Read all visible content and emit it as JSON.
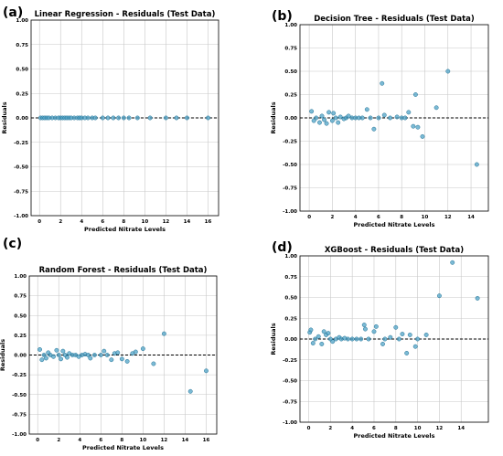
{
  "chart_data": [
    {
      "type": "scatter",
      "panel_label": "(a)",
      "title": "Linear Regression - Residuals (Test Data)",
      "xlabel": "Predicted Nitrate Levels",
      "ylabel": "Residuals",
      "xlim": [
        -0.8,
        17
      ],
      "ylim": [
        -1.0,
        1.0
      ],
      "xticks": [
        "0",
        "2",
        "4",
        "6",
        "8",
        "10",
        "12",
        "14",
        "16"
      ],
      "yticks": [
        "-1.00",
        "-0.75",
        "-0.50",
        "-0.25",
        "0.00",
        "0.25",
        "0.50",
        "0.75",
        "1.00"
      ],
      "xtick_values": [
        0,
        2,
        4,
        6,
        8,
        10,
        12,
        14,
        16
      ],
      "ytick_values": [
        -1.0,
        -0.75,
        -0.5,
        -0.25,
        0.0,
        0.25,
        0.5,
        0.75,
        1.0
      ],
      "reference_line": 0.0,
      "grid": true,
      "x": [
        0.1,
        0.3,
        0.5,
        0.7,
        0.9,
        1.2,
        1.5,
        1.8,
        2.0,
        2.2,
        2.4,
        2.6,
        2.8,
        3.0,
        3.3,
        3.6,
        3.8,
        4.0,
        4.3,
        4.6,
        5.0,
        5.3,
        6.0,
        6.5,
        7.0,
        7.5,
        8.0,
        8.5,
        9.3,
        10.5,
        12.0,
        13.0,
        14.0,
        16.0
      ],
      "y": [
        0,
        0,
        0,
        0,
        0,
        0,
        0,
        0,
        0,
        0,
        0,
        0,
        0,
        0,
        0,
        0,
        0,
        0,
        0,
        0,
        0,
        0,
        0,
        0,
        0,
        0,
        0,
        0,
        0,
        0,
        0,
        0,
        0,
        0
      ]
    },
    {
      "type": "scatter",
      "panel_label": "(b)",
      "title": "Decision Tree - Residuals (Test Data)",
      "xlabel": "Predicted Nitrate Levels",
      "ylabel": "Residuals",
      "xlim": [
        -0.8,
        15.5
      ],
      "ylim": [
        -1.0,
        1.0
      ],
      "xticks": [
        "0",
        "2",
        "4",
        "6",
        "8",
        "10",
        "12",
        "14"
      ],
      "yticks": [
        "-1.00",
        "-0.75",
        "-0.50",
        "-0.25",
        "0.00",
        "0.25",
        "0.50",
        "0.75",
        "1.00"
      ],
      "xtick_values": [
        0,
        2,
        4,
        6,
        8,
        10,
        12,
        14
      ],
      "ytick_values": [
        -1.0,
        -0.75,
        -0.5,
        -0.25,
        0.0,
        0.25,
        0.5,
        0.75,
        1.0
      ],
      "reference_line": 0.0,
      "grid": true,
      "x": [
        0.2,
        0.4,
        0.6,
        0.9,
        1.1,
        1.3,
        1.5,
        1.7,
        2.0,
        2.1,
        2.3,
        2.5,
        2.7,
        3.0,
        3.2,
        3.4,
        3.7,
        4.0,
        4.3,
        4.6,
        5.0,
        5.3,
        5.6,
        6.0,
        6.3,
        6.5,
        7.0,
        7.6,
        8.0,
        8.3,
        8.6,
        9.0,
        9.2,
        9.4,
        9.8,
        11.0,
        12.0,
        14.5
      ],
      "y": [
        0.07,
        -0.03,
        0.0,
        -0.05,
        0.02,
        -0.02,
        -0.06,
        0.06,
        -0.03,
        0.05,
        0.0,
        -0.05,
        0.01,
        -0.01,
        0.0,
        0.02,
        0.0,
        0.0,
        0.0,
        0.0,
        0.09,
        0.0,
        -0.12,
        0.0,
        0.37,
        0.03,
        0.0,
        0.01,
        0.0,
        0.0,
        0.06,
        -0.09,
        0.25,
        -0.1,
        -0.2,
        0.11,
        0.5,
        -0.5
      ]
    },
    {
      "type": "scatter",
      "panel_label": "(c)",
      "title": "Random Forest - Residuals (Test Data)",
      "xlabel": "Predicted Nitrate Levels",
      "ylabel": "Residuals",
      "xlim": [
        -0.8,
        17
      ],
      "ylim": [
        -1.0,
        1.0
      ],
      "xticks": [
        "0",
        "2",
        "4",
        "6",
        "8",
        "10",
        "12",
        "14",
        "16"
      ],
      "yticks": [
        "-1.00",
        "-0.75",
        "-0.50",
        "-0.25",
        "0.00",
        "0.25",
        "0.50",
        "0.75",
        "1.00"
      ],
      "xtick_values": [
        0,
        2,
        4,
        6,
        8,
        10,
        12,
        14,
        16
      ],
      "ytick_values": [
        -1.0,
        -0.75,
        -0.5,
        -0.25,
        0.0,
        0.25,
        0.5,
        0.75,
        1.0
      ],
      "reference_line": 0.0,
      "grid": true,
      "x": [
        0.2,
        0.4,
        0.6,
        0.8,
        1.0,
        1.2,
        1.5,
        1.8,
        2.0,
        2.2,
        2.4,
        2.6,
        2.8,
        3.0,
        3.3,
        3.6,
        3.9,
        4.2,
        4.5,
        4.8,
        5.0,
        5.4,
        6.0,
        6.3,
        6.6,
        7.0,
        7.3,
        7.6,
        8.0,
        8.5,
        9.0,
        9.3,
        10.0,
        11.0,
        12.0,
        14.5,
        16.0
      ],
      "y": [
        0.07,
        -0.06,
        0.0,
        -0.04,
        0.03,
        0.0,
        -0.02,
        0.06,
        0.0,
        -0.05,
        0.05,
        0.0,
        -0.03,
        0.02,
        0.0,
        0.0,
        -0.02,
        0.0,
        0.01,
        0.0,
        -0.04,
        0.0,
        0.0,
        0.05,
        0.0,
        -0.06,
        0.02,
        0.03,
        -0.05,
        -0.08,
        0.02,
        0.04,
        0.08,
        -0.11,
        0.27,
        -0.46,
        -0.2
      ]
    },
    {
      "type": "scatter",
      "panel_label": "(d)",
      "title": "XGBoost - Residuals (Test Data)",
      "xlabel": "Predicted Nitrate Levels",
      "ylabel": "Residuals",
      "xlim": [
        -0.8,
        16.5
      ],
      "ylim": [
        -1.0,
        1.0
      ],
      "xticks": [
        "0",
        "2",
        "4",
        "6",
        "8",
        "10",
        "12",
        "14"
      ],
      "yticks": [
        "-1.00",
        "-0.75",
        "-0.50",
        "-0.25",
        "0.00",
        "0.25",
        "0.50",
        "0.75",
        "1.00"
      ],
      "xtick_values": [
        0,
        2,
        4,
        6,
        8,
        10,
        12,
        14
      ],
      "ytick_values": [
        -1.0,
        -0.75,
        -0.5,
        -0.25,
        0.0,
        0.25,
        0.5,
        0.75,
        1.0
      ],
      "reference_line": 0.0,
      "grid": true,
      "x": [
        0.1,
        0.2,
        0.4,
        0.6,
        0.9,
        1.2,
        1.4,
        1.6,
        1.8,
        2.0,
        2.2,
        2.5,
        2.8,
        3.0,
        3.3,
        3.6,
        4.0,
        4.4,
        4.8,
        5.1,
        5.2,
        5.5,
        6.0,
        6.2,
        6.8,
        7.0,
        7.5,
        8.0,
        8.3,
        8.6,
        9.0,
        9.3,
        9.8,
        10.0,
        10.8,
        12.0,
        13.2,
        15.5
      ],
      "y": [
        0.08,
        0.11,
        -0.05,
        0.0,
        0.03,
        -0.06,
        0.09,
        0.05,
        0.07,
        0.0,
        -0.03,
        0.0,
        0.02,
        0.0,
        0.01,
        0.0,
        0.0,
        0.0,
        0.0,
        0.17,
        0.12,
        0.0,
        0.09,
        0.15,
        -0.06,
        0.0,
        0.02,
        0.14,
        0.0,
        0.06,
        -0.17,
        0.05,
        -0.09,
        0.0,
        0.05,
        0.52,
        0.92,
        0.49
      ]
    }
  ]
}
